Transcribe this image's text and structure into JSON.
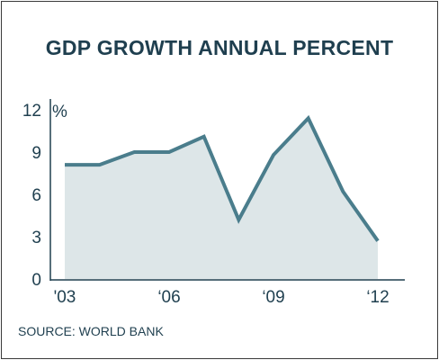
{
  "chart_data": {
    "type": "area",
    "title": "GDP GROWTH ANNUAL PERCENT",
    "source": "SOURCE: WORLD BANK",
    "y_unit": "%",
    "x": [
      2003,
      2004,
      2005,
      2006,
      2007,
      2008,
      2009,
      2010,
      2011,
      2012
    ],
    "values": [
      8.1,
      8.1,
      9.0,
      9.0,
      10.1,
      4.2,
      8.8,
      11.4,
      6.2,
      2.7
    ],
    "xlim": [
      2003,
      2012
    ],
    "ylim": [
      0,
      12
    ],
    "x_ticks": [
      "'03",
      "‘06",
      "‘09",
      "‘12"
    ],
    "y_ticks": [
      "0",
      "3",
      "6",
      "9",
      "12"
    ],
    "grid": false,
    "colors": {
      "line": "#4a7d8c",
      "fill": "#dde6e8",
      "axis": "#1f3f4f",
      "text": "#1f3f4f"
    }
  }
}
